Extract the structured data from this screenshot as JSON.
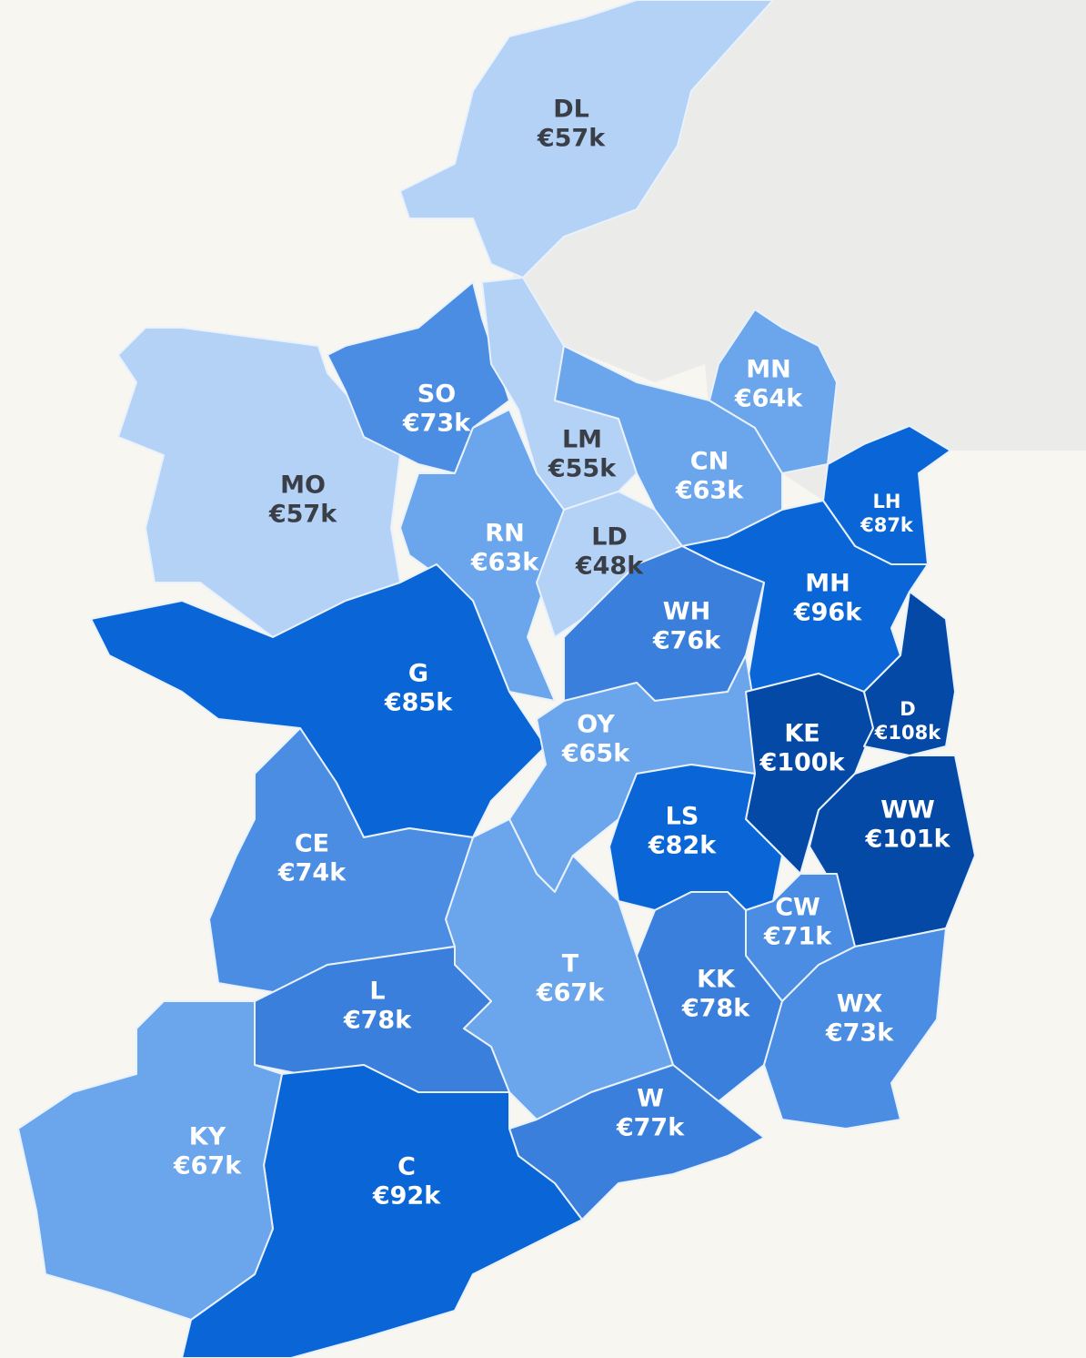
{
  "counties": [
    {
      "code": "DL",
      "value": "€57k",
      "color": "#b4d1f6",
      "label_color": "#3a3f47"
    },
    {
      "code": "MO",
      "value": "€57k",
      "color": "#b4d1f6",
      "label_color": "#3a3f47"
    },
    {
      "code": "SO",
      "value": "€73k",
      "color": "#4a8de3",
      "label_color": "#ffffff"
    },
    {
      "code": "LM",
      "value": "€55k",
      "color": "#b4d1f6",
      "label_color": "#3a3f47"
    },
    {
      "code": "RN",
      "value": "€63k",
      "color": "#6ba5ec",
      "label_color": "#ffffff"
    },
    {
      "code": "LD",
      "value": "€48k",
      "color": "#b4d1f6",
      "label_color": "#3a3f47"
    },
    {
      "code": "CN",
      "value": "€63k",
      "color": "#6ba5ec",
      "label_color": "#ffffff"
    },
    {
      "code": "MN",
      "value": "€64k",
      "color": "#6ba5ec",
      "label_color": "#ffffff"
    },
    {
      "code": "LH",
      "value": "€87k",
      "color": "#0a66d6",
      "label_color": "#ffffff"
    },
    {
      "code": "MH",
      "value": "€96k",
      "color": "#0a66d6",
      "label_color": "#ffffff"
    },
    {
      "code": "WH",
      "value": "€76k",
      "color": "#3b7fdd",
      "label_color": "#ffffff"
    },
    {
      "code": "G",
      "value": "€85k",
      "color": "#0a66d6",
      "label_color": "#ffffff"
    },
    {
      "code": "OY",
      "value": "€65k",
      "color": "#6ba5ec",
      "label_color": "#ffffff"
    },
    {
      "code": "KE",
      "value": "€100k",
      "color": "#0549a6",
      "label_color": "#ffffff"
    },
    {
      "code": "D",
      "value": "€108k",
      "color": "#0549a6",
      "label_color": "#ffffff"
    },
    {
      "code": "WW",
      "value": "€101k",
      "color": "#0549a6",
      "label_color": "#ffffff"
    },
    {
      "code": "LS",
      "value": "€82k",
      "color": "#0a66d6",
      "label_color": "#ffffff"
    },
    {
      "code": "CW",
      "value": "€71k",
      "color": "#4a8de3",
      "label_color": "#ffffff"
    },
    {
      "code": "KK",
      "value": "€78k",
      "color": "#3b7fdd",
      "label_color": "#ffffff"
    },
    {
      "code": "WX",
      "value": "€73k",
      "color": "#4a8de3",
      "label_color": "#ffffff"
    },
    {
      "code": "T",
      "value": "€67k",
      "color": "#6ba5ec",
      "label_color": "#ffffff"
    },
    {
      "code": "W",
      "value": "€77k",
      "color": "#3b7fdd",
      "label_color": "#ffffff"
    },
    {
      "code": "CE",
      "value": "€74k",
      "color": "#4a8de3",
      "label_color": "#ffffff"
    },
    {
      "code": "L",
      "value": "€78k",
      "color": "#3b7fdd",
      "label_color": "#ffffff"
    },
    {
      "code": "C",
      "value": "€92k",
      "color": "#0a66d6",
      "label_color": "#ffffff"
    },
    {
      "code": "KY",
      "value": "€67k",
      "color": "#6ba5ec",
      "label_color": "#ffffff"
    }
  ]
}
